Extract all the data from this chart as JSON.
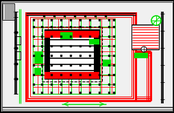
{
  "bg_color": "#e8e8e8",
  "red": "#ff0000",
  "green": "#00dd00",
  "black": "#000000",
  "white": "#ffffff",
  "fig_width": 2.55,
  "fig_height": 1.65,
  "dpi": 100,
  "page_bg": "#f0f0f0"
}
